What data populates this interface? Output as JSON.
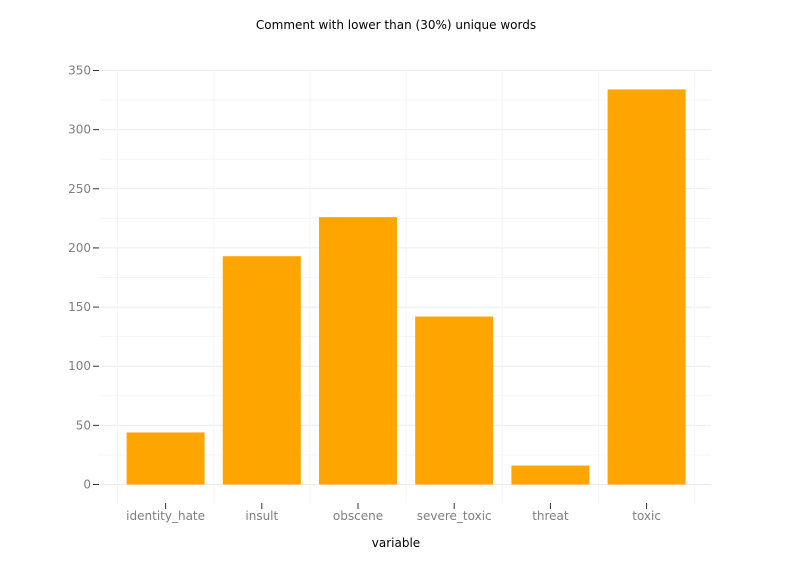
{
  "chart_data": {
    "type": "bar",
    "title": "Comment with lower than (30%) unique words",
    "xlabel": "variable",
    "ylabel": "",
    "categories": [
      "identity_hate",
      "insult",
      "obscene",
      "severe_toxic",
      "threat",
      "toxic"
    ],
    "values": [
      44,
      193,
      226,
      142,
      16,
      334
    ],
    "ylim": [
      -15,
      350
    ],
    "yticks": [
      0,
      50,
      100,
      150,
      200,
      250,
      300,
      350
    ],
    "grid": true,
    "legend": "none",
    "colors": {
      "bar": "#FFA500",
      "grid_major": "#ebebeb",
      "grid_minor": "#f5f5f5",
      "tick_text": "#7f7f7f",
      "title": "#000000"
    }
  }
}
